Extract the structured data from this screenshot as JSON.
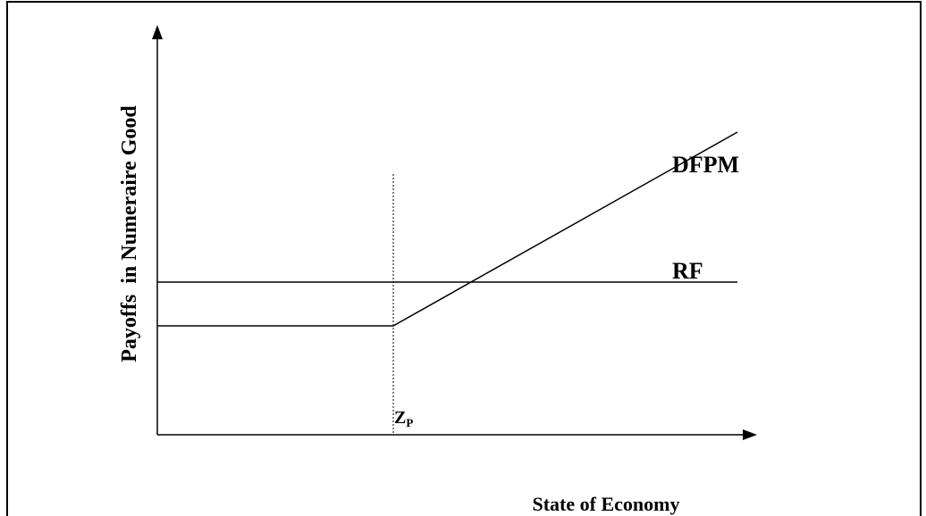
{
  "labels": {
    "y_axis": "Payoffs  in Numeraire Good",
    "x_axis": "State of Economy",
    "dfpm": "DFPM",
    "rf": "RF",
    "threshold": "Z",
    "threshold_subscript": "P"
  }
}
